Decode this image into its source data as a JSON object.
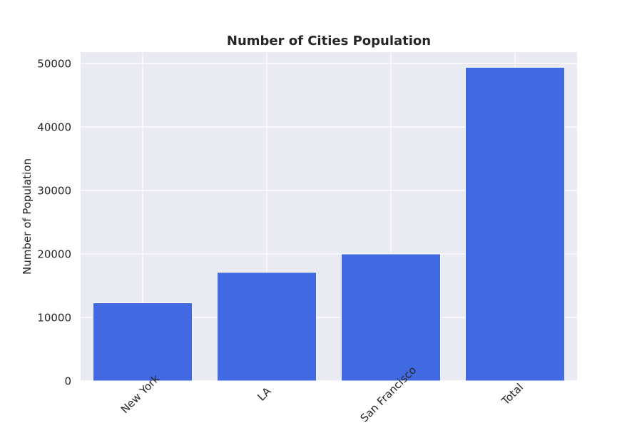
{
  "chart_data": {
    "type": "bar",
    "title": "Number of Cities Population",
    "xlabel": "",
    "ylabel": "Number of Population",
    "categories": [
      "New York",
      "LA",
      "San Francisco",
      "Total"
    ],
    "values": [
      12300,
      17100,
      20000,
      49400
    ],
    "ylim": [
      0,
      51800
    ],
    "yticks": [
      0,
      10000,
      20000,
      30000,
      40000,
      50000
    ],
    "grid": true,
    "legend": "none",
    "colors": {
      "bar": "#4169e1",
      "plot_background": "#eaeaf2",
      "grid": "#ffffff",
      "text": "#262626"
    }
  }
}
